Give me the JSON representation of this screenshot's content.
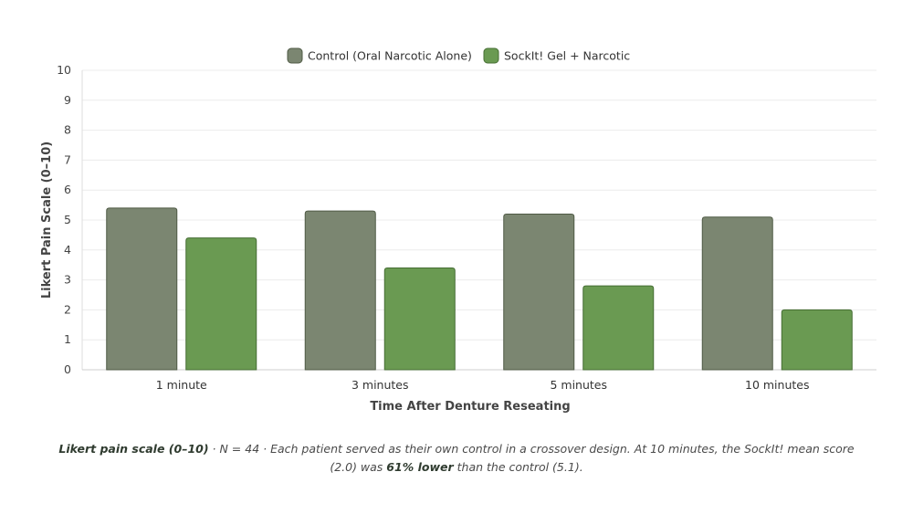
{
  "chart_data": {
    "type": "bar",
    "title": "",
    "xlabel": "Time After Denture Reseating",
    "ylabel": "Likert Pain Scale (0–10)",
    "ylim": [
      0,
      10
    ],
    "yticks": [
      "0",
      "1",
      "2",
      "3",
      "4",
      "5",
      "6",
      "7",
      "8",
      "9",
      "10"
    ],
    "grid": true,
    "legend_position": "top-center",
    "categories": [
      "1 minute",
      "3 minutes",
      "5 minutes",
      "10 minutes"
    ],
    "series": [
      {
        "name": "Control (Oral Narcotic Alone)",
        "color": "#7b8671",
        "stroke": "#4f5a45",
        "values": [
          5.4,
          5.3,
          5.2,
          5.1
        ]
      },
      {
        "name": "SockIt! Gel + Narcotic",
        "color": "#6a9a52",
        "stroke": "#456d33",
        "values": [
          4.4,
          3.4,
          2.8,
          2.0
        ]
      }
    ]
  },
  "caption": {
    "lead": "Likert pain scale (0–10)",
    "text1": " · N = 44 · Each patient served as their own control in a crossover design. At 10 minutes, the SockIt! mean score (2.0) was ",
    "emphasis": "61% lower",
    "text2": " than the control (5.1)."
  }
}
